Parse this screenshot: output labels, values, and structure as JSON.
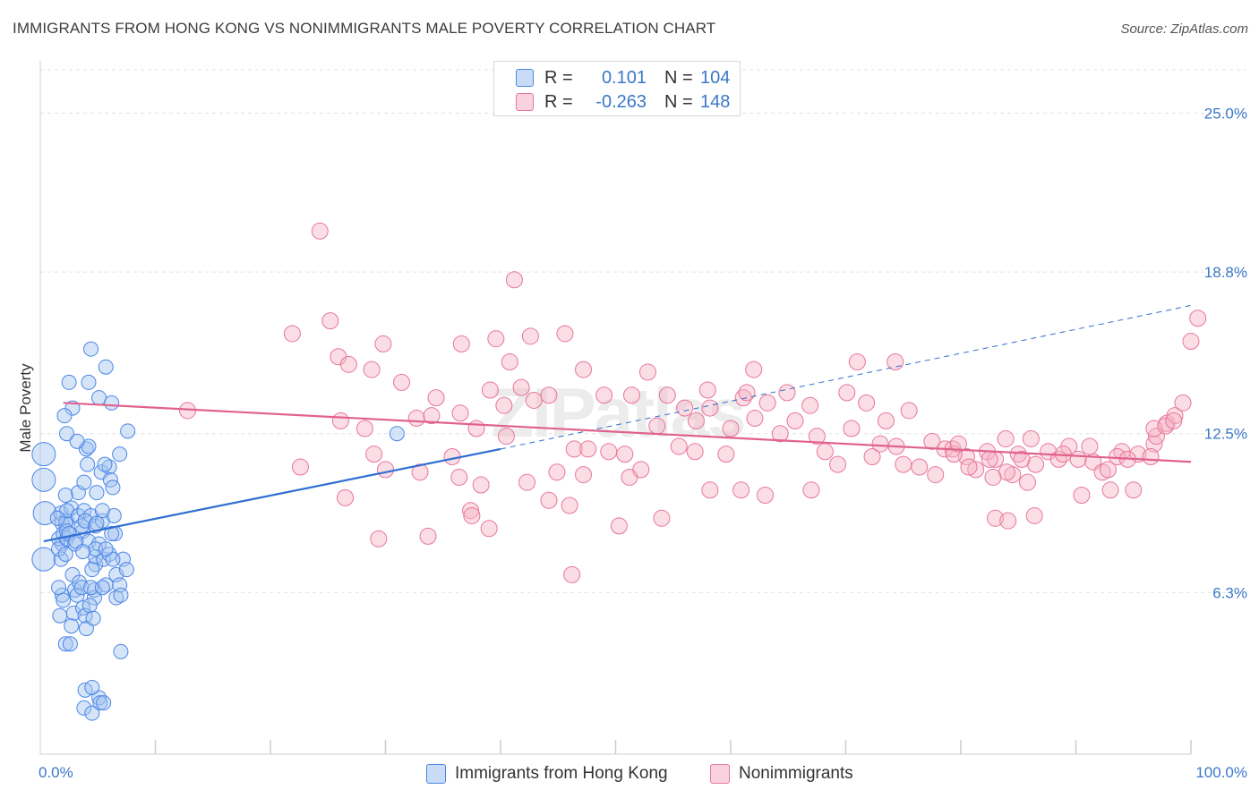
{
  "title": "IMMIGRANTS FROM HONG KONG VS NONIMMIGRANTS MALE POVERTY CORRELATION CHART",
  "source": "Source: ZipAtlas.com",
  "watermark": "ZIPatlas",
  "colors": {
    "blue": "#4a86e8",
    "blue_fill": "rgba(164,196,240,0.45)",
    "blue_line": "#2f6fd0",
    "pink": "#e8769a",
    "pink_fill": "rgba(246,180,200,0.45)",
    "pink_line": "#e0628c",
    "tick_text": "#3a78c8",
    "grid": "#e2e2e2"
  },
  "legend": {
    "rows": [
      {
        "r_label": "R =",
        "r_value": "0.101",
        "n_label": "N =",
        "n_value": "104"
      },
      {
        "r_label": "R =",
        "r_value": "-0.263",
        "n_label": "N =",
        "n_value": "148"
      }
    ]
  },
  "bottom_legend": [
    "Immigrants from Hong Kong",
    "Nonimmigrants"
  ],
  "chart_data": {
    "type": "scatter",
    "title": "IMMIGRANTS FROM HONG KONG VS NONIMMIGRANTS MALE POVERTY CORRELATION CHART",
    "xlabel": "",
    "ylabel": "Male Poverty",
    "xlim": [
      0,
      100
    ],
    "ylim": [
      0,
      26.9
    ],
    "x_tick_labels": [
      "0.0%",
      "100.0%"
    ],
    "y_ticks": [
      6.3,
      12.5,
      18.8,
      25.0
    ],
    "y_tick_labels": [
      "6.3%",
      "12.5%",
      "18.8%",
      "25.0%"
    ],
    "grid": true,
    "legend_position": "top-center",
    "series": [
      {
        "name": "Immigrants from Hong Kong",
        "color": "#4a86e8",
        "trend": {
          "x": [
            0.3,
            40
          ],
          "y": [
            8.3,
            11.9
          ],
          "dashed_extension": {
            "x": [
              40,
              100
            ],
            "y": [
              11.9,
              17.5
            ]
          }
        },
        "points": [
          [
            1.7,
            5.4
          ],
          [
            1.9,
            8.2
          ],
          [
            1.8,
            7.6
          ],
          [
            1.6,
            8.4
          ],
          [
            1.8,
            9.4
          ],
          [
            1.6,
            8.0
          ],
          [
            1.9,
            6.2
          ],
          [
            1.6,
            6.5
          ],
          [
            2.2,
            4.3
          ],
          [
            2.6,
            4.3
          ],
          [
            2.0,
            8.6
          ],
          [
            1.9,
            9.0
          ],
          [
            2.3,
            9.1
          ],
          [
            2.3,
            8.4
          ],
          [
            2.2,
            7.8
          ],
          [
            2.0,
            6.0
          ],
          [
            2.7,
            9.6
          ],
          [
            3.0,
            6.4
          ],
          [
            2.8,
            7.0
          ],
          [
            3.2,
            6.2
          ],
          [
            2.9,
            5.5
          ],
          [
            2.7,
            5.0
          ],
          [
            2.2,
            9.0
          ],
          [
            2.3,
            8.7
          ],
          [
            2.3,
            9.5
          ],
          [
            2.3,
            12.5
          ],
          [
            2.8,
            13.5
          ],
          [
            2.1,
            13.2
          ],
          [
            2.5,
            14.5
          ],
          [
            2.5,
            8.6
          ],
          [
            3.3,
            9.3
          ],
          [
            3.3,
            10.2
          ],
          [
            3.4,
            6.7
          ],
          [
            3.0,
            8.2
          ],
          [
            3.6,
            6.5
          ],
          [
            3.7,
            5.7
          ],
          [
            3.7,
            8.7
          ],
          [
            3.9,
            5.4
          ],
          [
            4.0,
            4.9
          ],
          [
            3.6,
            8.9
          ],
          [
            3.8,
            10.6
          ],
          [
            4.0,
            11.9
          ],
          [
            4.2,
            12.0
          ],
          [
            4.1,
            11.3
          ],
          [
            3.8,
            9.5
          ],
          [
            4.4,
            9.3
          ],
          [
            4.2,
            8.3
          ],
          [
            4.7,
            6.4
          ],
          [
            4.7,
            6.1
          ],
          [
            4.3,
            5.8
          ],
          [
            3.8,
            1.8
          ],
          [
            4.5,
            1.6
          ],
          [
            5.1,
            2.2
          ],
          [
            3.9,
            2.5
          ],
          [
            4.8,
            7.4
          ],
          [
            4.8,
            7.7
          ],
          [
            5.1,
            8.2
          ],
          [
            5.5,
            7.6
          ],
          [
            5.7,
            6.6
          ],
          [
            6.0,
            7.8
          ],
          [
            4.4,
            15.8
          ],
          [
            4.2,
            14.5
          ],
          [
            5.1,
            13.9
          ],
          [
            5.7,
            15.1
          ],
          [
            3.9,
            9.1
          ],
          [
            4.8,
            8.9
          ],
          [
            5.4,
            9.1
          ],
          [
            5.3,
            11.0
          ],
          [
            6.0,
            11.2
          ],
          [
            6.5,
            8.6
          ],
          [
            6.1,
            10.7
          ],
          [
            6.3,
            10.4
          ],
          [
            6.2,
            8.6
          ],
          [
            4.5,
            7.2
          ],
          [
            4.8,
            8.0
          ],
          [
            4.4,
            6.5
          ],
          [
            6.6,
            6.1
          ],
          [
            6.6,
            7.0
          ],
          [
            6.9,
            6.6
          ],
          [
            7.2,
            7.6
          ],
          [
            6.4,
            9.3
          ],
          [
            6.3,
            7.6
          ],
          [
            5.4,
            6.5
          ],
          [
            4.6,
            5.3
          ],
          [
            5.4,
            9.5
          ],
          [
            1.5,
            9.2
          ],
          [
            3.1,
            8.3
          ],
          [
            5.7,
            8.0
          ],
          [
            4.9,
            9.0
          ],
          [
            5.6,
            11.3
          ],
          [
            6.9,
            11.7
          ],
          [
            7.5,
            7.2
          ],
          [
            7.0,
            6.2
          ],
          [
            5.2,
            2.0
          ],
          [
            7.0,
            4.0
          ],
          [
            4.5,
            2.6
          ],
          [
            5.5,
            2.0
          ],
          [
            7.6,
            12.6
          ],
          [
            6.2,
            13.7
          ],
          [
            3.2,
            12.2
          ],
          [
            2.2,
            10.1
          ],
          [
            3.7,
            7.9
          ],
          [
            4.9,
            10.2
          ],
          [
            31.0,
            12.5
          ]
        ],
        "sizes": {
          "large": [
            [
              0.3,
              11.7
            ],
            [
              0.3,
              10.7
            ],
            [
              0.3,
              7.6
            ],
            [
              0.4,
              9.4
            ]
          ]
        }
      },
      {
        "name": "Nonimmigrants",
        "color": "#e8769a",
        "trend": {
          "x": [
            2,
            100
          ],
          "y": [
            13.7,
            11.4
          ]
        },
        "points": [
          [
            24.3,
            20.4
          ],
          [
            41.2,
            18.5
          ],
          [
            25.2,
            16.9
          ],
          [
            21.9,
            16.4
          ],
          [
            25.9,
            15.5
          ],
          [
            26.8,
            15.2
          ],
          [
            29.8,
            16.0
          ],
          [
            28.8,
            15.0
          ],
          [
            31.4,
            14.5
          ],
          [
            36.6,
            16.0
          ],
          [
            39.6,
            16.2
          ],
          [
            42.6,
            16.3
          ],
          [
            45.6,
            16.4
          ],
          [
            40.8,
            15.3
          ],
          [
            47.2,
            15.0
          ],
          [
            52.8,
            14.9
          ],
          [
            51.4,
            14.0
          ],
          [
            49.0,
            14.0
          ],
          [
            44.2,
            14.0
          ],
          [
            39.1,
            14.2
          ],
          [
            34.4,
            13.9
          ],
          [
            40.3,
            13.6
          ],
          [
            41.8,
            14.3
          ],
          [
            36.5,
            13.3
          ],
          [
            42.9,
            13.8
          ],
          [
            32.7,
            13.1
          ],
          [
            26.1,
            13.0
          ],
          [
            28.2,
            12.7
          ],
          [
            37.9,
            12.7
          ],
          [
            34.0,
            13.2
          ],
          [
            29.0,
            11.7
          ],
          [
            30.0,
            11.1
          ],
          [
            26.5,
            10.0
          ],
          [
            35.8,
            11.6
          ],
          [
            38.3,
            10.5
          ],
          [
            36.4,
            10.8
          ],
          [
            33.0,
            11.0
          ],
          [
            37.4,
            9.5
          ],
          [
            42.3,
            10.6
          ],
          [
            44.2,
            9.9
          ],
          [
            46.4,
            11.9
          ],
          [
            47.2,
            10.9
          ],
          [
            49.4,
            11.8
          ],
          [
            50.8,
            11.7
          ],
          [
            51.2,
            10.8
          ],
          [
            53.6,
            12.8
          ],
          [
            55.5,
            12.0
          ],
          [
            56.0,
            13.5
          ],
          [
            54.5,
            14.0
          ],
          [
            57.0,
            13.0
          ],
          [
            58.0,
            14.2
          ],
          [
            58.2,
            13.5
          ],
          [
            60.0,
            12.7
          ],
          [
            59.6,
            11.7
          ],
          [
            61.1,
            13.9
          ],
          [
            61.4,
            14.1
          ],
          [
            62.1,
            13.1
          ],
          [
            63.2,
            13.7
          ],
          [
            64.9,
            14.1
          ],
          [
            64.3,
            12.5
          ],
          [
            66.9,
            13.6
          ],
          [
            65.6,
            13.0
          ],
          [
            67.5,
            12.4
          ],
          [
            68.2,
            11.8
          ],
          [
            69.3,
            11.3
          ],
          [
            70.5,
            12.7
          ],
          [
            72.3,
            11.6
          ],
          [
            73.0,
            12.1
          ],
          [
            74.4,
            12.0
          ],
          [
            75.0,
            11.3
          ],
          [
            76.4,
            11.2
          ],
          [
            77.8,
            10.9
          ],
          [
            78.6,
            11.9
          ],
          [
            79.3,
            11.9
          ],
          [
            80.5,
            11.6
          ],
          [
            81.3,
            11.1
          ],
          [
            82.3,
            11.8
          ],
          [
            83.0,
            11.5
          ],
          [
            84.5,
            10.9
          ],
          [
            85.0,
            11.7
          ],
          [
            86.1,
            12.3
          ],
          [
            87.6,
            11.8
          ],
          [
            88.5,
            11.5
          ],
          [
            89.4,
            12.0
          ],
          [
            90.2,
            11.5
          ],
          [
            91.5,
            11.4
          ],
          [
            92.3,
            11.0
          ],
          [
            93.0,
            10.3
          ],
          [
            94.0,
            11.8
          ],
          [
            95.4,
            11.7
          ],
          [
            96.8,
            12.1
          ],
          [
            97.9,
            12.9
          ],
          [
            98.6,
            13.2
          ],
          [
            99.3,
            13.7
          ],
          [
            100.0,
            16.1
          ],
          [
            100.6,
            17.0
          ],
          [
            97.0,
            12.4
          ],
          [
            96.5,
            11.6
          ],
          [
            62.0,
            15.0
          ],
          [
            71.0,
            15.3
          ],
          [
            74.3,
            15.3
          ],
          [
            75.5,
            13.4
          ],
          [
            71.8,
            13.7
          ],
          [
            70.1,
            14.1
          ],
          [
            73.5,
            13.0
          ],
          [
            77.5,
            12.2
          ],
          [
            80.7,
            11.2
          ],
          [
            82.5,
            11.5
          ],
          [
            84.0,
            11.0
          ],
          [
            86.5,
            11.3
          ],
          [
            88.9,
            11.7
          ],
          [
            90.5,
            10.1
          ],
          [
            92.8,
            11.1
          ],
          [
            95.0,
            10.3
          ],
          [
            67.0,
            10.3
          ],
          [
            60.9,
            10.3
          ],
          [
            63.0,
            10.1
          ],
          [
            58.2,
            10.3
          ],
          [
            54.0,
            9.2
          ],
          [
            50.3,
            8.9
          ],
          [
            46.0,
            9.7
          ],
          [
            39.0,
            8.8
          ],
          [
            37.5,
            9.3
          ],
          [
            33.7,
            8.5
          ],
          [
            29.4,
            8.4
          ],
          [
            46.2,
            7.0
          ],
          [
            47.6,
            11.9
          ],
          [
            44.9,
            11.0
          ],
          [
            40.5,
            12.4
          ],
          [
            79.4,
            11.7
          ],
          [
            83.9,
            12.3
          ],
          [
            85.8,
            10.6
          ],
          [
            86.4,
            9.3
          ],
          [
            83.0,
            9.2
          ],
          [
            84.1,
            9.1
          ],
          [
            82.8,
            10.8
          ],
          [
            85.3,
            11.5
          ],
          [
            91.2,
            12.0
          ],
          [
            93.6,
            11.6
          ],
          [
            94.5,
            11.5
          ],
          [
            96.8,
            12.7
          ],
          [
            97.8,
            12.8
          ],
          [
            98.5,
            13.0
          ],
          [
            12.8,
            13.4
          ],
          [
            22.6,
            11.2
          ],
          [
            56.9,
            11.8
          ],
          [
            52.2,
            11.1
          ],
          [
            79.8,
            12.1
          ]
        ]
      }
    ]
  }
}
